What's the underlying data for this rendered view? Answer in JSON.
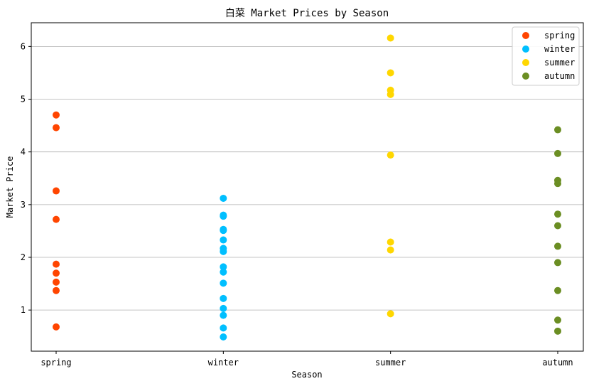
{
  "chart_data": {
    "type": "scatter",
    "title": "白菜 Market Prices by Season",
    "xlabel": "Season",
    "ylabel": "Market Price",
    "categories": [
      "spring",
      "winter",
      "summer",
      "autumn"
    ],
    "ylim": [
      0.22,
      6.45
    ],
    "yticks": [
      1,
      2,
      3,
      4,
      5,
      6
    ],
    "grid": "y",
    "legend_position": "top-right",
    "series": [
      {
        "name": "spring",
        "color": "#ff4500",
        "x": "spring",
        "values": [
          4.7,
          4.46,
          3.26,
          2.72,
          1.87,
          1.7,
          1.53,
          1.37,
          0.68
        ]
      },
      {
        "name": "winter",
        "color": "#00bfff",
        "x": "winter",
        "values": [
          3.12,
          2.8,
          2.78,
          2.53,
          2.51,
          2.33,
          2.17,
          2.11,
          1.82,
          1.72,
          1.51,
          1.22,
          1.03,
          0.9,
          0.66,
          0.49
        ]
      },
      {
        "name": "summer",
        "color": "#ffd700",
        "x": "summer",
        "values": [
          6.16,
          5.5,
          5.17,
          5.09,
          3.94,
          2.29,
          2.14,
          0.93
        ]
      },
      {
        "name": "autumn",
        "color": "#6b8e23",
        "x": "autumn",
        "values": [
          4.42,
          3.97,
          3.46,
          3.4,
          2.82,
          2.6,
          2.21,
          1.9,
          1.37,
          0.81,
          0.6
        ]
      }
    ]
  }
}
